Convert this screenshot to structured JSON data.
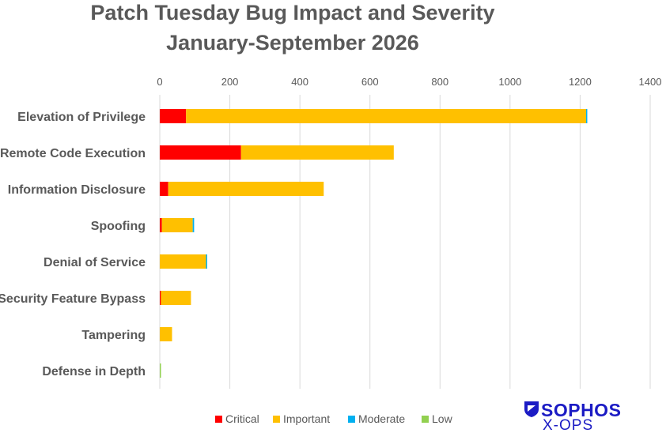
{
  "chart_data": {
    "type": "bar",
    "orientation": "horizontal",
    "stacked": true,
    "title": "Patch Tuesday Bug Impact and Severity",
    "subtitle": "January-September 2026",
    "categories": [
      "Elevation of Privilege",
      "Remote Code Execution",
      "Information Disclosure",
      "Spoofing",
      "Denial of Service",
      "Security Feature Bypass",
      "Tampering",
      "Defense in Depth"
    ],
    "series": [
      {
        "name": "Critical",
        "color": "#ff0000",
        "values": [
          75,
          232,
          24,
          6,
          0,
          3,
          0,
          0
        ]
      },
      {
        "name": "Important",
        "color": "#ffc000",
        "values": [
          1142,
          436,
          444,
          88,
          132,
          86,
          35,
          0
        ]
      },
      {
        "name": "Moderate",
        "color": "#00b0f0",
        "values": [
          3,
          0,
          0,
          4,
          3,
          0,
          0,
          0
        ]
      },
      {
        "name": "Low",
        "color": "#92d050",
        "values": [
          0,
          0,
          0,
          0,
          0,
          0,
          0,
          3
        ]
      }
    ],
    "xlim": [
      0,
      1400
    ],
    "xticks": [
      0,
      200,
      400,
      600,
      800,
      1000,
      1200,
      1400
    ],
    "x_axis_position": "top",
    "grid": true,
    "legend_position": "bottom"
  },
  "logo": {
    "wordmark": "SOPHOS",
    "subtext": "X-OPS",
    "color": "#1b1bc4"
  }
}
